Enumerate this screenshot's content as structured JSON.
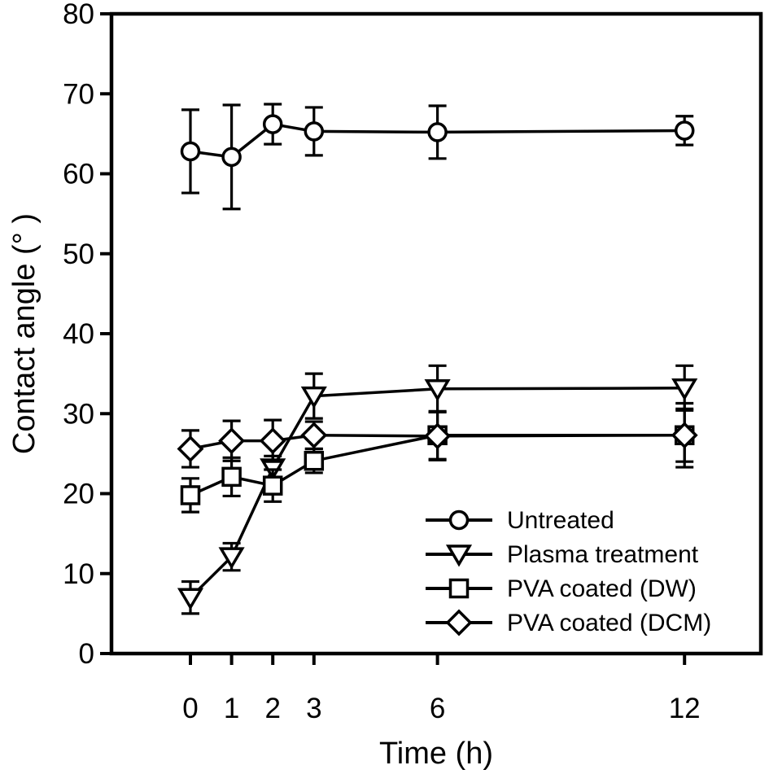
{
  "figure": {
    "background": "#ffffff",
    "ink": "#000000"
  },
  "chart_data": {
    "type": "line",
    "title": "",
    "xlabel": "Time (h)",
    "ylabel": "Contact angle (° )",
    "x": [
      0,
      1,
      2,
      3,
      6,
      12
    ],
    "x_tick_labels": [
      "0",
      "1",
      "2",
      "3",
      "6",
      "12"
    ],
    "y_ticks": [
      0,
      10,
      20,
      30,
      40,
      50,
      60,
      70,
      80
    ],
    "y_tick_labels": [
      "0",
      "10",
      "20",
      "30",
      "40",
      "50",
      "60",
      "70",
      "80"
    ],
    "xlim": [
      -1.9,
      13.9
    ],
    "ylim": [
      0,
      80
    ],
    "grid": false,
    "error_bars": true,
    "marker_fill": "#ffffff",
    "legend_position": "inside-lower-right",
    "series": [
      {
        "name": "Untreated",
        "marker": "circle",
        "values": [
          62.8,
          62.1,
          66.2,
          65.3,
          65.2,
          65.4
        ],
        "errors": [
          5.2,
          6.5,
          2.5,
          3.0,
          3.3,
          1.8
        ]
      },
      {
        "name": "Plasma treatment",
        "marker": "triangle-down",
        "values": [
          7.0,
          12.1,
          23.2,
          32.2,
          33.1,
          33.2
        ],
        "errors": [
          2.0,
          1.7,
          1.5,
          2.8,
          2.9,
          2.8
        ]
      },
      {
        "name": "PVA coated (DW)",
        "marker": "square",
        "values": [
          19.8,
          22.1,
          21.0,
          24.1,
          27.3,
          27.3
        ],
        "errors": [
          2.1,
          2.4,
          2.0,
          1.5,
          3.0,
          4.0
        ]
      },
      {
        "name": "PVA coated (DCM)",
        "marker": "diamond",
        "values": [
          25.6,
          26.6,
          26.6,
          27.3,
          27.2,
          27.3
        ],
        "errors": [
          2.3,
          2.5,
          2.6,
          1.7,
          3.0,
          3.3
        ]
      }
    ]
  }
}
